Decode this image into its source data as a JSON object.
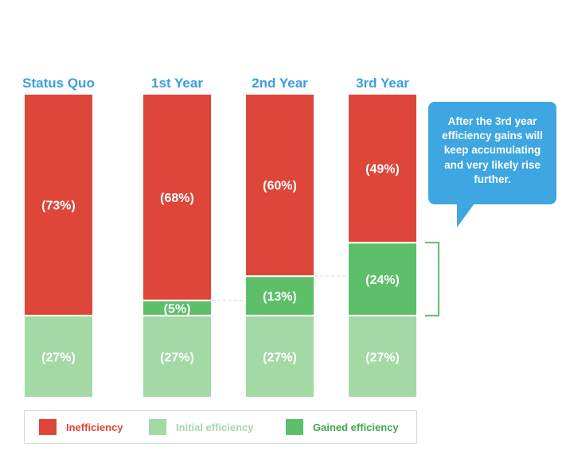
{
  "chart_data": {
    "type": "bar",
    "stacked": true,
    "categories": [
      "Status Quo",
      "1st Year",
      "2nd Year",
      "3rd Year"
    ],
    "series": [
      {
        "name": "Initial efficiency",
        "color": "#a3d9a5",
        "values": [
          27,
          27,
          27,
          27
        ],
        "labels": [
          "(27%)",
          "(27%)",
          "(27%)",
          "(27%)"
        ]
      },
      {
        "name": "Gained efficiency",
        "color": "#5dbf6a",
        "values": [
          0,
          5,
          13,
          24
        ],
        "labels": [
          "",
          "(5%)",
          "(13%)",
          "(24%)"
        ]
      },
      {
        "name": "Inefficiency",
        "color": "#dd4639",
        "values": [
          73,
          68,
          60,
          49
        ],
        "labels": [
          "(73%)",
          "(68%)",
          "(60%)",
          "(49%)"
        ]
      }
    ],
    "ylim": [
      0,
      100
    ],
    "grid": false,
    "legend": {
      "placement": "bottom-left",
      "items": [
        {
          "label": "Inefficiency",
          "color": "#dd4639",
          "text_color": "#dd4639"
        },
        {
          "label": "Initial efficiency",
          "color": "#a3d9a5",
          "text_color": "#a3d9a5"
        },
        {
          "label": "Gained efficiency",
          "color": "#5dbf6a",
          "text_color": "#3fa84e"
        }
      ]
    },
    "annotation": "After the 3rd year efficiency gains will keep accumulating and very likely rise further.",
    "label_color": "#3a9fdc",
    "bracket_color": "#5dbf6a"
  }
}
